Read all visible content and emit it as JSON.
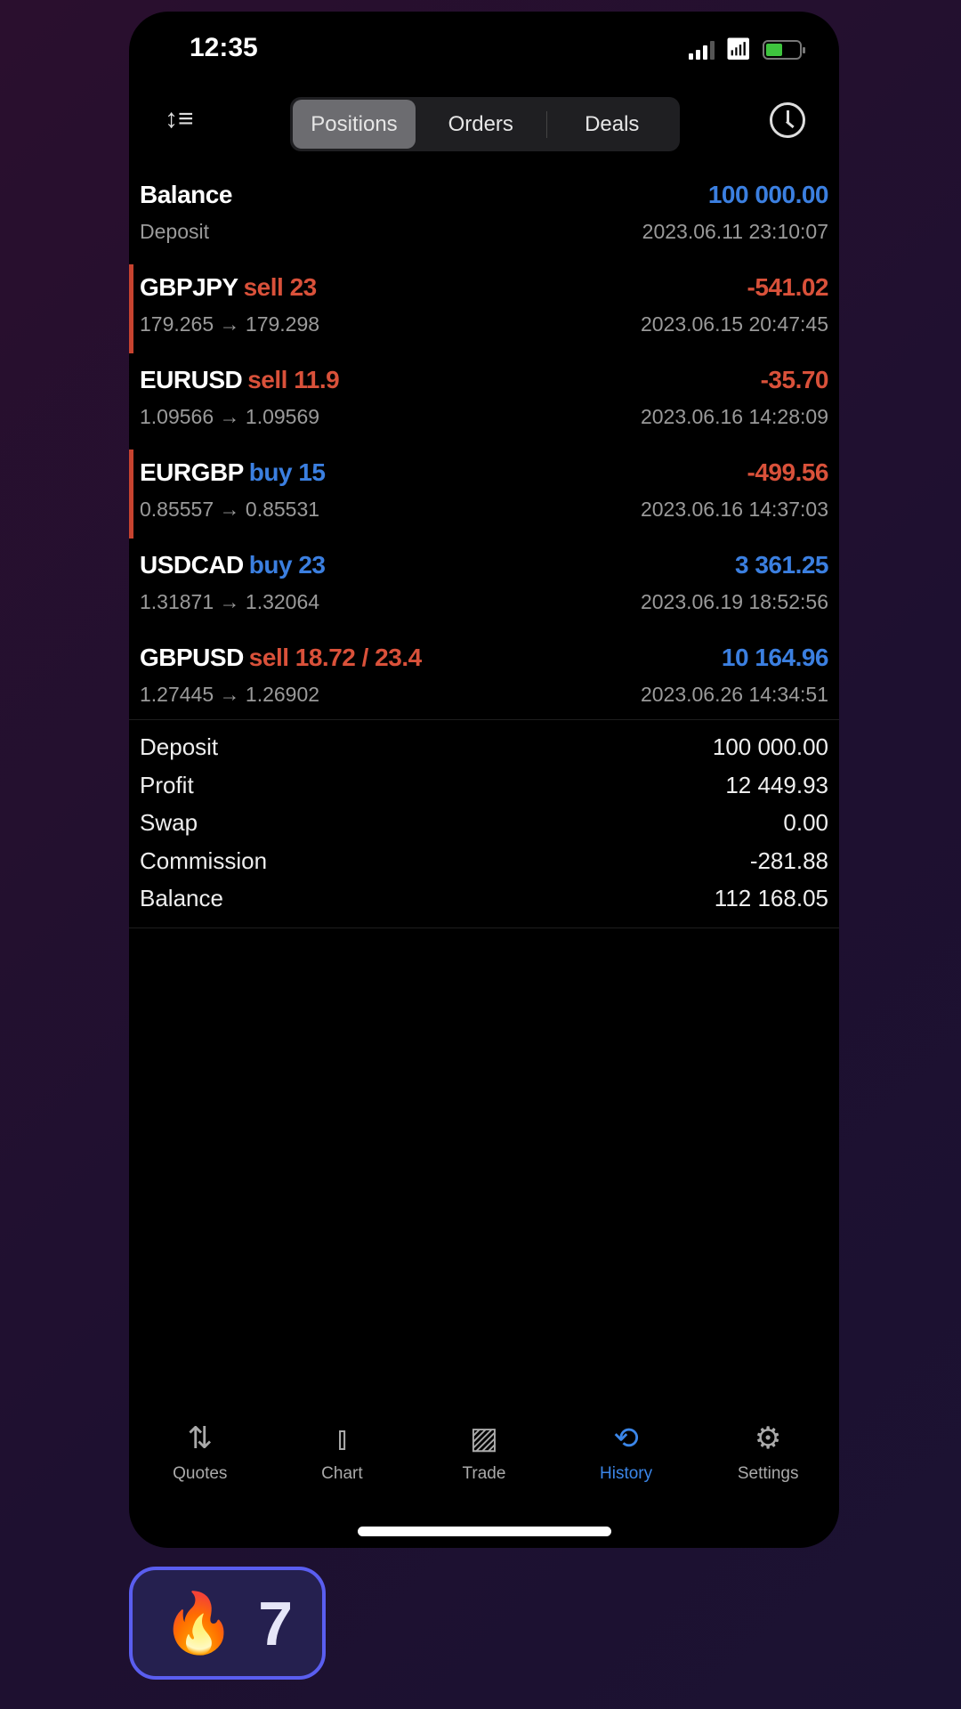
{
  "status": {
    "time": "12:35"
  },
  "segments": [
    {
      "label": "Positions",
      "active": true
    },
    {
      "label": "Orders"
    },
    {
      "label": "Deals"
    }
  ],
  "balance": {
    "title": "Balance",
    "sub": "Deposit",
    "value": "100 000.00",
    "date": "2023.06.11 23:10:07"
  },
  "positions": [
    {
      "symbol": "GBPJPY",
      "side": "sell 23",
      "side_color": "red",
      "prices": "179.265 → 179.298",
      "profit": "-541.02",
      "profit_color": "red",
      "date": "2023.06.15 20:47:45",
      "marker": true
    },
    {
      "symbol": "EURUSD",
      "side": "sell 11.9",
      "side_color": "red",
      "prices": "1.09566 → 1.09569",
      "profit": "-35.70",
      "profit_color": "red",
      "date": "2023.06.16 14:28:09",
      "marker": false
    },
    {
      "symbol": "EURGBP",
      "side": "buy 15",
      "side_color": "blue",
      "prices": "0.85557 → 0.85531",
      "profit": "-499.56",
      "profit_color": "red",
      "date": "2023.06.16 14:37:03",
      "marker": true
    },
    {
      "symbol": "USDCAD",
      "side": "buy 23",
      "side_color": "blue",
      "prices": "1.31871 → 1.32064",
      "profit": "3 361.25",
      "profit_color": "blue",
      "date": "2023.06.19 18:52:56",
      "marker": false
    },
    {
      "symbol": "GBPUSD",
      "side": "sell 18.72 / 23.4",
      "side_color": "red",
      "prices": "1.27445 → 1.26902",
      "profit": "10 164.96",
      "profit_color": "blue",
      "date": "2023.06.26 14:34:51",
      "marker": false
    }
  ],
  "summary": [
    {
      "label": "Deposit",
      "value": "100 000.00"
    },
    {
      "label": "Profit",
      "value": "12 449.93"
    },
    {
      "label": "Swap",
      "value": "0.00"
    },
    {
      "label": "Commission",
      "value": "-281.88"
    },
    {
      "label": "Balance",
      "value": "112 168.05"
    }
  ],
  "tabs": [
    {
      "label": "Quotes",
      "icon": "quotes-arrows-icon"
    },
    {
      "label": "Chart",
      "icon": "candlestick-icon"
    },
    {
      "label": "Trade",
      "icon": "trade-chart-icon"
    },
    {
      "label": "History",
      "icon": "history-icon",
      "active": true
    },
    {
      "label": "Settings",
      "icon": "gear-icon"
    }
  ],
  "streak": {
    "icon": "fire-icon",
    "count": "7"
  },
  "colors": {
    "red": "#d9513a",
    "blue": "#3b7fe0",
    "active_tab": "#3b86e8",
    "badge_border": "#5a5ef0"
  }
}
